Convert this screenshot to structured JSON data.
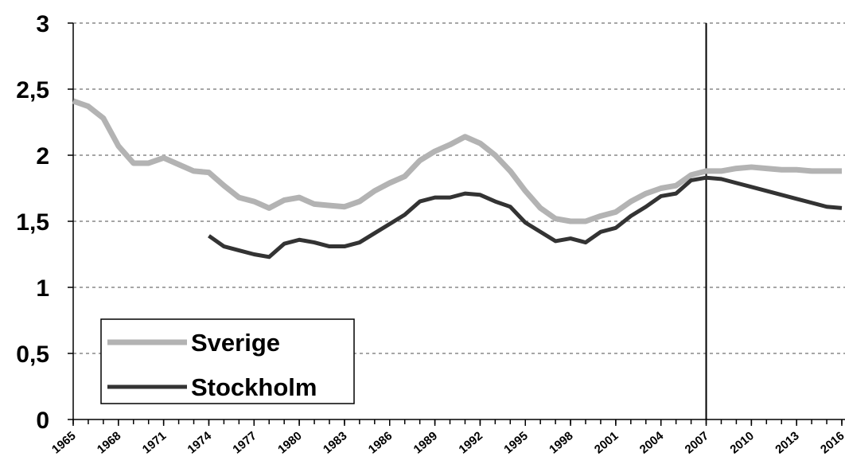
{
  "chart_data": {
    "type": "line",
    "x": [
      1965,
      1966,
      1967,
      1968,
      1969,
      1970,
      1971,
      1972,
      1973,
      1974,
      1975,
      1976,
      1977,
      1978,
      1979,
      1980,
      1981,
      1982,
      1983,
      1984,
      1985,
      1986,
      1987,
      1988,
      1989,
      1990,
      1991,
      1992,
      1993,
      1994,
      1995,
      1996,
      1997,
      1998,
      1999,
      2000,
      2001,
      2002,
      2003,
      2004,
      2005,
      2006,
      2007,
      2008,
      2009,
      2010,
      2011,
      2012,
      2013,
      2014,
      2015,
      2016
    ],
    "series": [
      {
        "name": "Sverige",
        "color": "#b3b3b3",
        "values": [
          2.41,
          2.37,
          2.28,
          2.07,
          1.94,
          1.94,
          1.98,
          1.93,
          1.88,
          1.87,
          1.77,
          1.68,
          1.65,
          1.6,
          1.66,
          1.68,
          1.63,
          1.62,
          1.61,
          1.65,
          1.73,
          1.79,
          1.84,
          1.96,
          2.03,
          2.08,
          2.14,
          2.09,
          2.0,
          1.88,
          1.73,
          1.6,
          1.52,
          1.5,
          1.5,
          1.54,
          1.57,
          1.65,
          1.71,
          1.75,
          1.77,
          1.85,
          1.88,
          1.88,
          1.9,
          1.91,
          1.9,
          1.89,
          1.89,
          1.88,
          1.88,
          1.88
        ]
      },
      {
        "name": "Stockholm",
        "color": "#333333",
        "values": [
          null,
          null,
          null,
          null,
          null,
          null,
          null,
          null,
          null,
          1.39,
          1.31,
          1.28,
          1.25,
          1.23,
          1.33,
          1.36,
          1.34,
          1.31,
          1.31,
          1.34,
          1.41,
          1.48,
          1.55,
          1.65,
          1.68,
          1.68,
          1.71,
          1.7,
          1.65,
          1.61,
          1.49,
          1.42,
          1.35,
          1.37,
          1.34,
          1.42,
          1.45,
          1.54,
          1.61,
          1.69,
          1.71,
          1.81,
          1.83,
          1.82,
          1.79,
          1.76,
          1.73,
          1.7,
          1.67,
          1.64,
          1.61,
          1.6
        ]
      }
    ],
    "xlim": [
      1965,
      2016
    ],
    "xticks": [
      1965,
      1968,
      1971,
      1974,
      1977,
      1980,
      1983,
      1986,
      1989,
      1992,
      1995,
      1998,
      2001,
      2004,
      2007,
      2010,
      2013,
      2016
    ],
    "ylim": [
      0,
      3
    ],
    "yticks": [
      0,
      {
        "value": 0.5,
        "label": "0,5"
      },
      1,
      {
        "value": 1.5,
        "label": "1,5"
      },
      2,
      {
        "value": 2.5,
        "label": "2,5"
      },
      3
    ],
    "grid": true,
    "vertical_line_x": 2007,
    "legend": "lower left"
  }
}
